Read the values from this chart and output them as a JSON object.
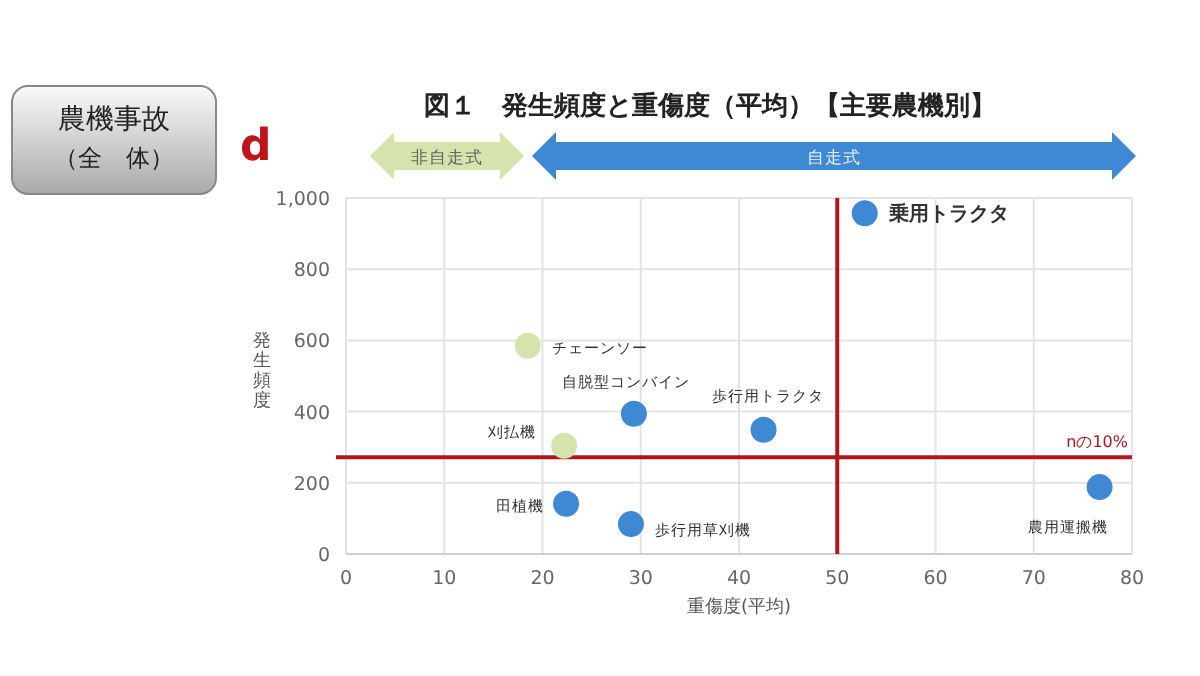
{
  "chart_data": {
    "type": "scatter",
    "title": "図１　発生頻度と重傷度（平均）【主要農機別】",
    "xlabel": "重傷度(平均)",
    "ylabel": "発生頻度",
    "series": [
      {
        "name": "非自走式",
        "color": "#d5e3ad",
        "x": [
          18.5,
          22.2
        ],
        "values": [
          585,
          304
        ]
      },
      {
        "name": "自走式",
        "color": "#3f88d3",
        "x": [
          52.8,
          29.3,
          42.5,
          22.4,
          29.0,
          76.7
        ],
        "values": [
          957,
          394,
          349,
          141,
          84,
          188
        ]
      }
    ],
    "xlim": [
      0,
      80
    ],
    "xticks": [
      0,
      10,
      20,
      30,
      40,
      50,
      60,
      70,
      80
    ],
    "ylim": [
      0,
      1000
    ],
    "yticks": [
      0,
      200,
      400,
      600,
      800,
      {
        "value": 1000,
        "label": "1,000"
      }
    ],
    "grid": true,
    "legend": "top",
    "marker": "circle",
    "ref_lines": [
      {
        "axis": "x",
        "value": 50,
        "label": null,
        "color": "#b0161c"
      },
      {
        "axis": "y",
        "value": 272,
        "label": "nの10%",
        "color": "#b0161c"
      }
    ],
    "annotations": [
      "農機事故",
      "（全　体）",
      "d",
      {
        "text": "乗用トラクタ",
        "x": 52.8,
        "y": 957
      },
      {
        "text": "チェーンソー",
        "x": 18.5,
        "y": 585
      },
      {
        "text": "刈払機",
        "x": 22.2,
        "y": 304
      },
      {
        "text": "自脱型コンバイン",
        "x": 29.3,
        "y": 394
      },
      {
        "text": "歩行用トラクタ",
        "x": 42.5,
        "y": 349
      },
      {
        "text": "田植機",
        "x": 22.4,
        "y": 141
      },
      {
        "text": "歩行用草刈機",
        "x": 29.0,
        "y": 84
      },
      {
        "text": "農用運搬機",
        "x": 76.7,
        "y": 188
      }
    ]
  }
}
